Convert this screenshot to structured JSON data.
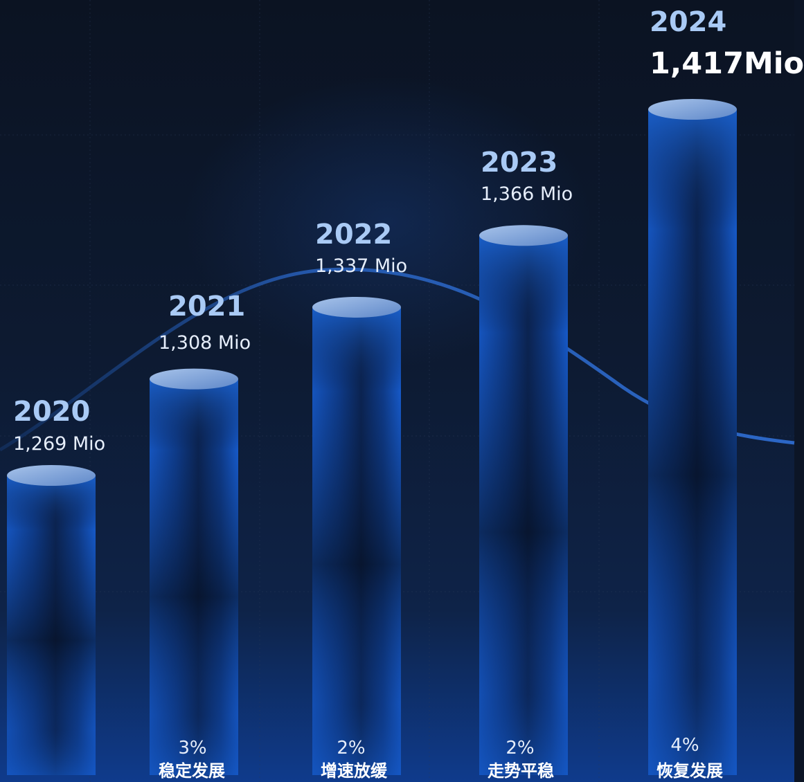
{
  "chart_data": {
    "type": "bar",
    "categories": [
      "2020",
      "2021",
      "2022",
      "2023",
      "2024"
    ],
    "values": [
      1269,
      1308,
      1337,
      1366,
      1417
    ],
    "value_labels": [
      "1,269 Mio",
      "1,308 Mio",
      "1,337 Mio",
      "1,366 Mio",
      "1,417Mio"
    ],
    "unit": "Mio",
    "growth_labels": [
      "",
      "3%",
      "2%",
      "2%",
      "4%"
    ],
    "phase_labels": [
      "",
      "稳定发展",
      "增速放缓",
      "走势平稳",
      "恢复发展"
    ],
    "highlight_index": 4,
    "style": "3d-cylinder",
    "grid": true,
    "trend_curve": true,
    "colors": {
      "bar": "#0f4fb8",
      "bar_top": "#8fb2e3",
      "year_text": "#a9caf5",
      "value_text": "#e6eefb",
      "curve": "#2f6fd6",
      "background": "#0c1526"
    }
  }
}
